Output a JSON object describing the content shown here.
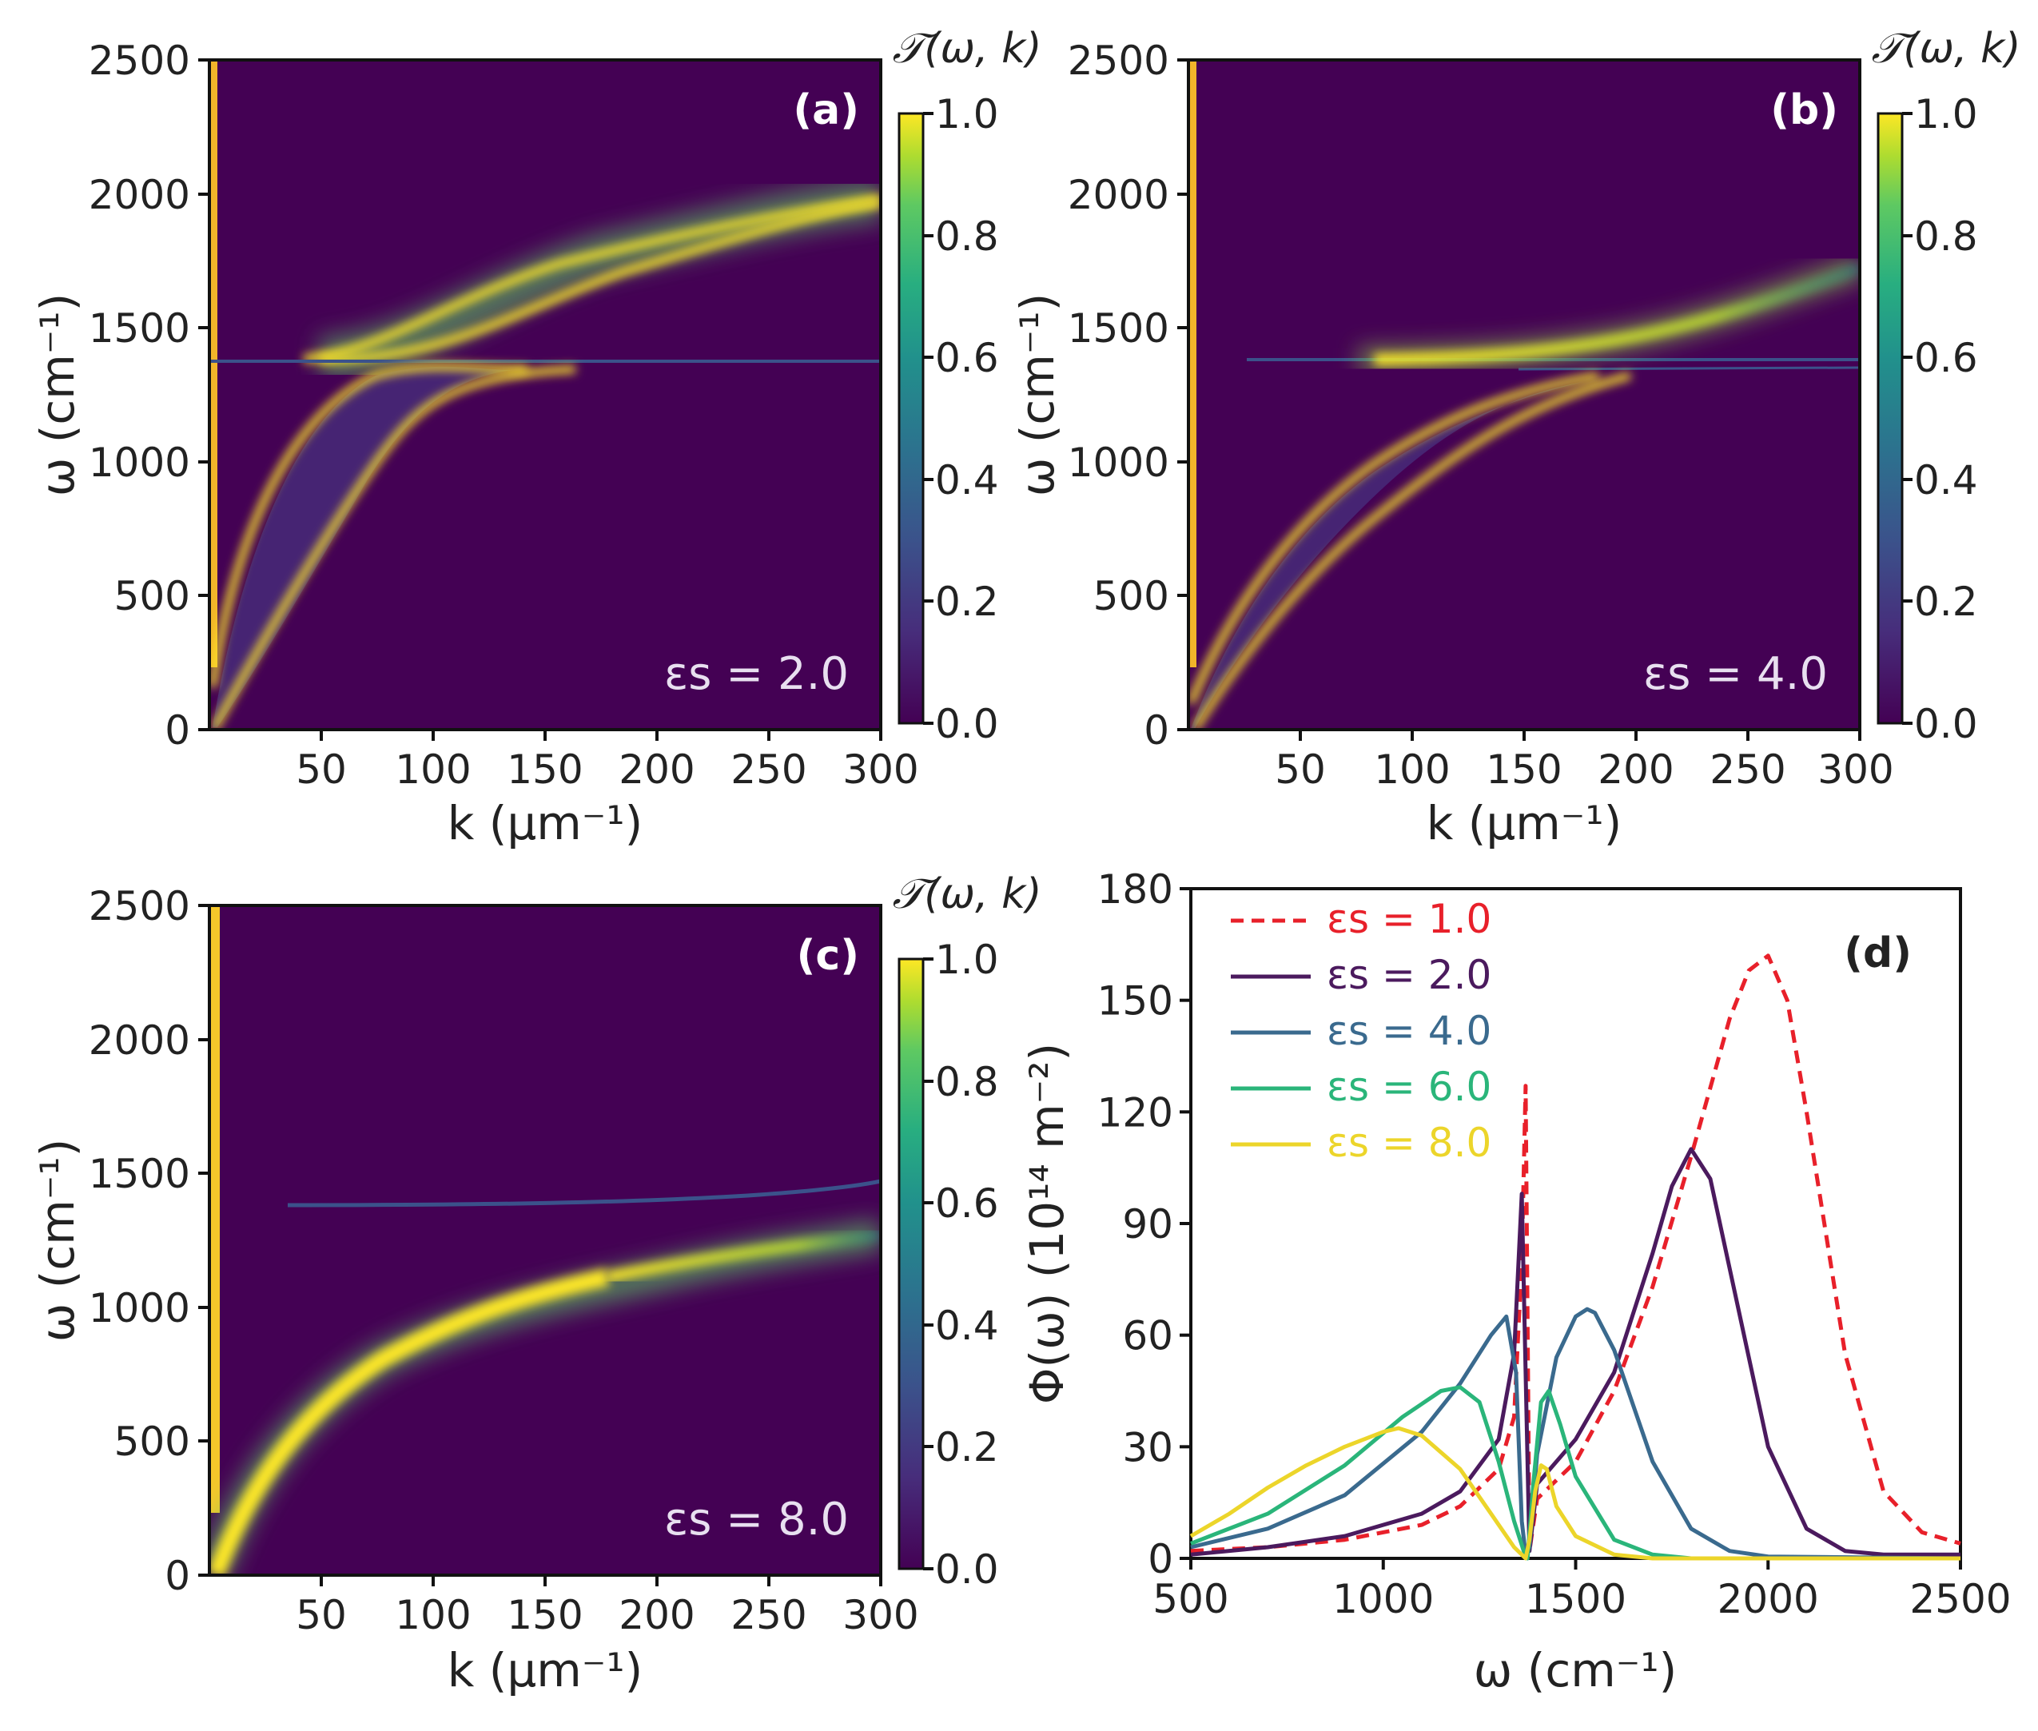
{
  "chart_data": [
    {
      "type": "heatmap",
      "panel": "(a)",
      "colorbar_title": "𝒯(ω, k)",
      "colorbar_ticks": [
        "0.0",
        "0.2",
        "0.4",
        "0.6",
        "0.8",
        "1.0"
      ],
      "xlabel": "k (μm⁻¹)",
      "ylabel": "ω (cm⁻¹)",
      "xticks": [
        "50",
        "100",
        "150",
        "200",
        "250",
        "300"
      ],
      "yticks": [
        "0",
        "500",
        "1000",
        "1500",
        "2000",
        "2500"
      ],
      "xlim": [
        0,
        300
      ],
      "ylim": [
        0,
        2500
      ],
      "annotation": "εs = 2.0",
      "eps_s": 2.0
    },
    {
      "type": "heatmap",
      "panel": "(b)",
      "colorbar_title": "𝒯(ω, k)",
      "colorbar_ticks": [
        "0.0",
        "0.2",
        "0.4",
        "0.6",
        "0.8",
        "1.0"
      ],
      "xlabel": "k (μm⁻¹)",
      "ylabel": "ω (cm⁻¹)",
      "xticks": [
        "50",
        "100",
        "150",
        "200",
        "250",
        "300"
      ],
      "yticks": [
        "0",
        "500",
        "1000",
        "1500",
        "2000",
        "2500"
      ],
      "xlim": [
        0,
        300
      ],
      "ylim": [
        0,
        2500
      ],
      "annotation": "εs = 4.0",
      "eps_s": 4.0
    },
    {
      "type": "heatmap",
      "panel": "(c)",
      "colorbar_title": "𝒯(ω, k)",
      "colorbar_ticks": [
        "0.0",
        "0.2",
        "0.4",
        "0.6",
        "0.8",
        "1.0"
      ],
      "xlabel": "k (μm⁻¹)",
      "ylabel": "ω (cm⁻¹)",
      "xticks": [
        "50",
        "100",
        "150",
        "200",
        "250",
        "300"
      ],
      "yticks": [
        "0",
        "500",
        "1000",
        "1500",
        "2000",
        "2500"
      ],
      "xlim": [
        0,
        300
      ],
      "ylim": [
        0,
        2500
      ],
      "annotation": "εs = 8.0",
      "eps_s": 8.0
    },
    {
      "type": "line",
      "panel": "(d)",
      "xlabel": "ω (cm⁻¹)",
      "ylabel": "Φ(ω) (10¹⁴ m⁻²)",
      "xticks": [
        "500",
        "1000",
        "1500",
        "2000",
        "2500"
      ],
      "yticks": [
        "0",
        "30",
        "60",
        "90",
        "120",
        "150",
        "180"
      ],
      "xlim": [
        500,
        2500
      ],
      "ylim": [
        0,
        180
      ],
      "legend_position": "top-left",
      "series": [
        {
          "name": "εs = 1.0",
          "color": "#e8202a",
          "dashed": true,
          "x": [
            500,
            700,
            900,
            1100,
            1200,
            1300,
            1340,
            1360,
            1370,
            1380,
            1400,
            1500,
            1600,
            1700,
            1800,
            1900,
            1950,
            2000,
            2050,
            2100,
            2200,
            2300,
            2400,
            2500
          ],
          "y": [
            2,
            3,
            5,
            9,
            14,
            24,
            38,
            80,
            127,
            2,
            16,
            26,
            45,
            73,
            108,
            145,
            158,
            162,
            150,
            120,
            55,
            18,
            7,
            4
          ]
        },
        {
          "name": "εs = 2.0",
          "color": "#4b1a5e",
          "dashed": false,
          "x": [
            500,
            700,
            900,
            1100,
            1200,
            1300,
            1340,
            1360,
            1370,
            1380,
            1400,
            1500,
            1600,
            1700,
            1750,
            1800,
            1850,
            1900,
            2000,
            2100,
            2200,
            2300,
            2500
          ],
          "y": [
            1,
            3,
            6,
            12,
            18,
            32,
            55,
            98,
            50,
            2,
            20,
            32,
            50,
            82,
            100,
            110,
            102,
            78,
            30,
            8,
            2,
            1,
            1
          ]
        },
        {
          "name": "εs = 4.0",
          "color": "#3a6a8e",
          "dashed": false,
          "x": [
            500,
            700,
            900,
            1100,
            1200,
            1280,
            1320,
            1345,
            1360,
            1370,
            1380,
            1400,
            1450,
            1500,
            1530,
            1550,
            1600,
            1700,
            1800,
            1900,
            2000,
            2500
          ],
          "y": [
            3,
            8,
            17,
            34,
            47,
            60,
            65,
            50,
            10,
            1,
            3,
            28,
            54,
            65,
            67,
            66,
            56,
            26,
            8,
            2,
            0.5,
            0
          ]
        },
        {
          "name": "εs = 6.0",
          "color": "#2ab57a",
          "dashed": false,
          "x": [
            500,
            700,
            900,
            1050,
            1150,
            1200,
            1250,
            1300,
            1340,
            1365,
            1375,
            1390,
            1410,
            1430,
            1460,
            1500,
            1600,
            1700,
            1800,
            2500
          ],
          "y": [
            4,
            12,
            25,
            38,
            45,
            46,
            42,
            26,
            10,
            2,
            0,
            20,
            42,
            45,
            36,
            22,
            5,
            1,
            0,
            0
          ]
        },
        {
          "name": "εs = 8.0",
          "color": "#ecd52a",
          "dashed": false,
          "x": [
            500,
            600,
            700,
            800,
            900,
            1000,
            1040,
            1100,
            1200,
            1280,
            1340,
            1370,
            1380,
            1395,
            1410,
            1425,
            1450,
            1500,
            1600,
            1700,
            2500
          ],
          "y": [
            6,
            12,
            19,
            25,
            30,
            34,
            35,
            33,
            24,
            12,
            3,
            0,
            5,
            18,
            25,
            24,
            14,
            6,
            1,
            0,
            0
          ]
        }
      ]
    }
  ]
}
